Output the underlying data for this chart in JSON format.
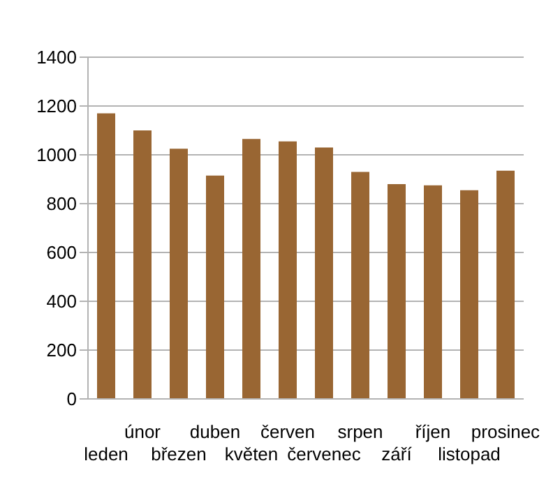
{
  "chart_data": {
    "type": "bar",
    "categories": [
      "leden",
      "únor",
      "březen",
      "duben",
      "květen",
      "červen",
      "červenec",
      "srpen",
      "září",
      "říjen",
      "listopad",
      "prosinec"
    ],
    "values": [
      1170,
      1100,
      1025,
      915,
      1065,
      1055,
      1030,
      930,
      880,
      875,
      855,
      935
    ],
    "color": "#996633",
    "ylim": [
      0,
      1400
    ],
    "yticks": [
      0,
      200,
      400,
      600,
      800,
      1000,
      1200,
      1400
    ],
    "grid": "y",
    "legend": false
  }
}
